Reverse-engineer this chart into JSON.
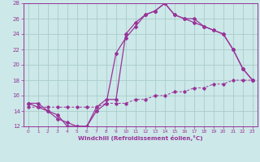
{
  "xlabel": "Windchill (Refroidissement éolien,°C)",
  "xlim": [
    -0.5,
    23.5
  ],
  "ylim": [
    12,
    28
  ],
  "yticks": [
    12,
    14,
    16,
    18,
    20,
    22,
    24,
    26,
    28
  ],
  "xticks": [
    0,
    1,
    2,
    3,
    4,
    5,
    6,
    7,
    8,
    9,
    10,
    11,
    12,
    13,
    14,
    15,
    16,
    17,
    18,
    19,
    20,
    21,
    22,
    23
  ],
  "bg_color": "#cce8e8",
  "grid_color": "#aacccc",
  "line_color": "#993399",
  "line1_x": [
    0,
    1,
    2,
    3,
    4,
    5,
    6,
    7,
    8,
    9,
    10,
    11,
    12,
    13,
    14,
    15,
    16,
    17,
    18,
    19,
    20,
    21,
    22,
    23
  ],
  "line1_y": [
    15.0,
    15.0,
    14.0,
    13.5,
    12.0,
    12.0,
    12.0,
    14.5,
    15.5,
    15.5,
    24.0,
    25.5,
    26.5,
    27.0,
    28.0,
    26.5,
    26.0,
    26.0,
    25.0,
    24.5,
    24.0,
    22.0,
    19.5,
    18.0
  ],
  "line2_x": [
    0,
    1,
    2,
    3,
    4,
    5,
    6,
    7,
    8,
    9,
    10,
    11,
    12,
    13,
    14,
    15,
    16,
    17,
    18,
    19,
    20,
    21,
    22,
    23
  ],
  "line2_y": [
    15.0,
    14.5,
    14.0,
    13.0,
    12.5,
    12.0,
    12.0,
    14.0,
    15.0,
    21.5,
    23.5,
    25.0,
    26.5,
    27.0,
    28.0,
    26.5,
    26.0,
    25.5,
    25.0,
    24.5,
    24.0,
    22.0,
    19.5,
    18.0
  ],
  "line3_x": [
    0,
    1,
    2,
    3,
    4,
    5,
    6,
    7,
    8,
    9,
    10,
    11,
    12,
    13,
    14,
    15,
    16,
    17,
    18,
    19,
    20,
    21,
    22,
    23
  ],
  "line3_y": [
    14.5,
    14.5,
    14.5,
    14.5,
    14.5,
    14.5,
    14.5,
    14.5,
    15.0,
    15.0,
    15.0,
    15.5,
    15.5,
    16.0,
    16.0,
    16.5,
    16.5,
    17.0,
    17.0,
    17.5,
    17.5,
    18.0,
    18.0,
    18.0
  ]
}
